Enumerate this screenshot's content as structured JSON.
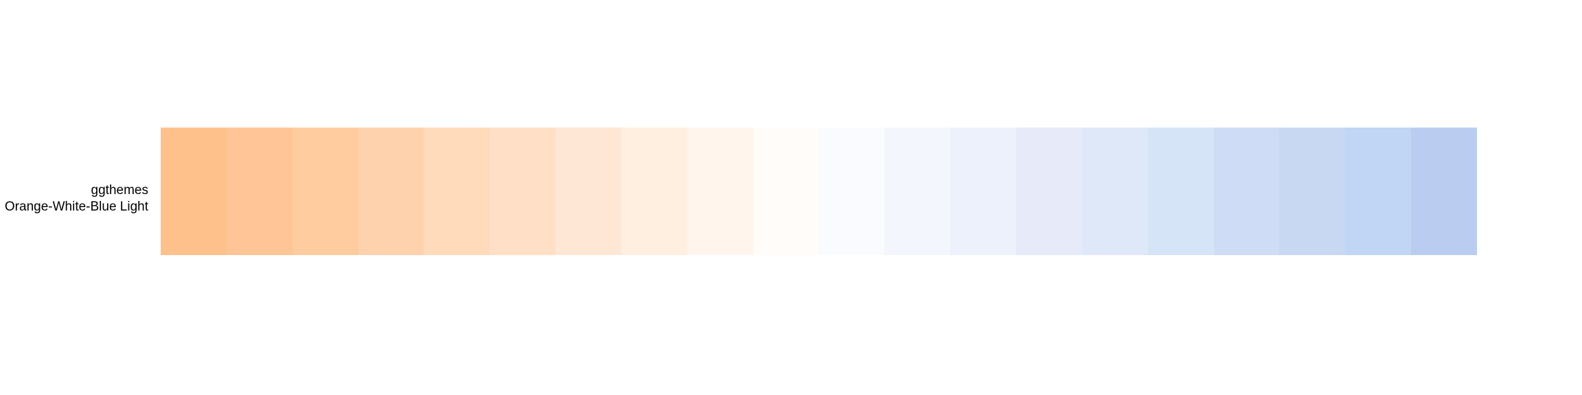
{
  "palette": {
    "package": "ggthemes",
    "name": "Orange-White-Blue Light",
    "colors": [
      "#FFC18C",
      "#FFC596",
      "#FFCC9F",
      "#FFD2AE",
      "#FFDABB",
      "#FFE0C7",
      "#FFE7D6",
      "#FFEFE1",
      "#FFF5EC",
      "#FFFCF9",
      "#FAFBFE",
      "#F3F6FD",
      "#ECF1FB",
      "#E7EBF9",
      "#DFE8F8",
      "#D5E4F6",
      "#CFDCF5",
      "#C8D8F3",
      "#C1D5F4",
      "#BACDF1"
    ]
  }
}
